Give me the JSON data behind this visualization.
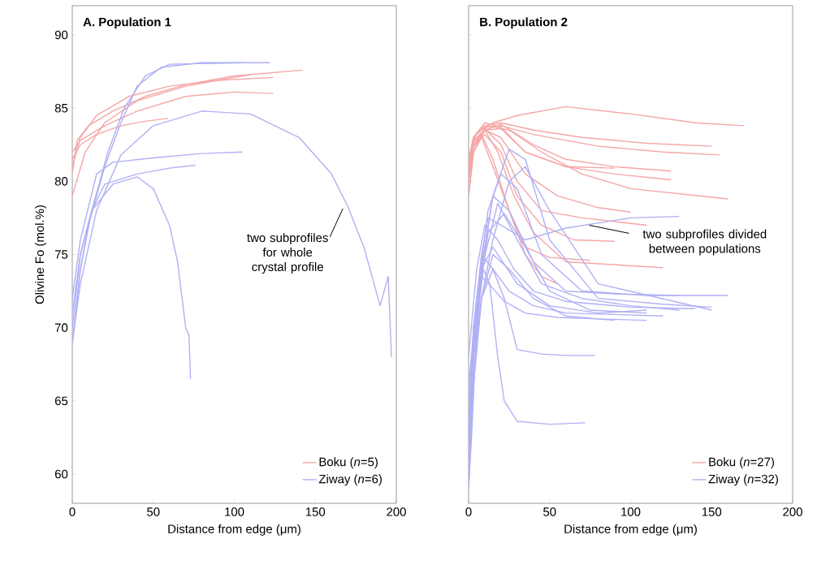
{
  "chart_data": [
    {
      "type": "line",
      "title": "A. Population 1",
      "xlabel": "Distance from edge (μm)",
      "ylabel": "Olivine Fo (mol.%)",
      "xlim": [
        0,
        200
      ],
      "ylim": [
        58,
        92
      ],
      "xticks": [
        0,
        50,
        100,
        150,
        200
      ],
      "yticks": [
        60,
        65,
        70,
        75,
        80,
        85,
        90
      ],
      "legend": "bottom right",
      "annotations": [
        {
          "text": "two subprofiles for whole crystal profile",
          "x": 168,
          "y": 78.3
        }
      ],
      "series": [
        {
          "name": "Boku (*n*=5)",
          "color": "#f5a6a6",
          "x": [
            0,
            3,
            10,
            25,
            45,
            70,
            100,
            142
          ],
          "values": [
            80.5,
            82.8,
            83.8,
            84.8,
            85.8,
            86.6,
            87.2,
            87.6
          ]
        },
        {
          "color": "#f5a6a6",
          "x": [
            0,
            5,
            15,
            35,
            60,
            90,
            124
          ],
          "values": [
            81,
            83,
            84.5,
            85.8,
            86.5,
            86.9,
            87.1
          ]
        },
        {
          "color": "#f5a6a6",
          "x": [
            0,
            5,
            20,
            40,
            70,
            100,
            124
          ],
          "values": [
            82,
            82.8,
            83.8,
            84.8,
            85.8,
            86.1,
            86.0
          ]
        },
        {
          "color": "#f5a6a6",
          "x": [
            0,
            5,
            15,
            30,
            45,
            59
          ],
          "values": [
            81.5,
            82.5,
            83.2,
            83.8,
            84.1,
            84.3
          ]
        },
        {
          "color": "#f5a6a6",
          "x": [
            0,
            8,
            20,
            40,
            70,
            110
          ],
          "values": [
            79,
            82,
            84,
            85.5,
            86.5,
            87.3
          ]
        },
        {
          "name": "Ziway (*n*=6)",
          "color": "#b0b0f5",
          "x": [
            0,
            5,
            10,
            20,
            30,
            40,
            55,
            80,
            122
          ],
          "values": [
            69,
            74,
            77,
            81,
            84,
            86.5,
            87.8,
            88.1,
            88.1
          ]
        },
        {
          "color": "#b0b0f5",
          "x": [
            0,
            5,
            12,
            22,
            32,
            45,
            60,
            105
          ],
          "values": [
            70,
            75,
            78,
            82,
            85,
            87.2,
            88,
            88.1
          ]
        },
        {
          "color": "#b0b0f5",
          "x": [
            0,
            5,
            15,
            30,
            50,
            80,
            110,
            140,
            160,
            170,
            180,
            190,
            195,
            197
          ],
          "values": [
            69,
            73,
            78,
            81.8,
            83.8,
            84.8,
            84.6,
            83,
            80.5,
            78.3,
            75.5,
            71.5,
            73.5,
            68
          ]
        },
        {
          "color": "#b0b0f5",
          "x": [
            0,
            5,
            15,
            25,
            50,
            80,
            105
          ],
          "values": [
            72,
            76,
            80.5,
            81.3,
            81.6,
            81.9,
            82.0
          ]
        },
        {
          "color": "#b0b0f5",
          "x": [
            0,
            5,
            12,
            20,
            40,
            60,
            76
          ],
          "values": [
            71,
            75,
            78,
            79.8,
            80.5,
            80.9,
            81.1
          ]
        },
        {
          "color": "#b0b0f5",
          "x": [
            0,
            5,
            12,
            25,
            40,
            50,
            60,
            65,
            70,
            72,
            73
          ],
          "values": [
            68.8,
            74,
            78,
            79.8,
            80.3,
            79.5,
            77,
            74.5,
            70,
            69.5,
            66.5
          ]
        }
      ]
    },
    {
      "type": "line",
      "title": "B. Population 2",
      "xlabel": "Distance from edge (μm)",
      "xlim": [
        0,
        200
      ],
      "ylim": [
        58,
        92
      ],
      "xticks": [
        0,
        50,
        100,
        150,
        200
      ],
      "yticks": [
        60,
        65,
        70,
        75,
        80,
        85,
        90
      ],
      "legend": "bottom right",
      "tick_labels": "x",
      "annotations": [
        {
          "text": "two subprofiles divided between populations",
          "x": 73,
          "y": 77
        }
      ],
      "series": [
        {
          "name": "Boku (*n*=27)",
          "color": "#f5a6a6",
          "x": [
            0,
            2,
            5,
            15,
            30,
            60,
            100,
            140,
            170
          ],
          "values": [
            80,
            82.5,
            83.3,
            84,
            84.5,
            85.1,
            84.6,
            84,
            83.8
          ]
        },
        {
          "color": "#f5a6a6",
          "x": [
            0,
            3,
            10,
            20,
            40,
            70,
            110,
            150
          ],
          "values": [
            81,
            83,
            83.8,
            84,
            83.5,
            83,
            82.6,
            82.4
          ]
        },
        {
          "color": "#f5a6a6",
          "x": [
            0,
            3,
            10,
            20,
            40,
            80,
            120,
            155
          ],
          "values": [
            81.5,
            83,
            83.7,
            83.8,
            83.2,
            82.4,
            82,
            81.8
          ]
        },
        {
          "color": "#f5a6a6",
          "x": [
            0,
            3,
            10,
            20,
            40,
            60,
            90,
            125
          ],
          "values": [
            80.5,
            82.8,
            83.5,
            83.9,
            82.5,
            81.5,
            81,
            80.7
          ]
        },
        {
          "color": "#f5a6a6",
          "x": [
            0,
            3,
            10,
            20,
            35,
            60,
            90,
            125
          ],
          "values": [
            81,
            82.5,
            83.5,
            83.6,
            82,
            81,
            80.5,
            80.1
          ]
        },
        {
          "color": "#f5a6a6",
          "x": [
            0,
            3,
            12,
            25,
            45,
            70,
            100,
            160
          ],
          "values": [
            81.5,
            82.7,
            83.8,
            83.5,
            82,
            80.5,
            79.5,
            78.8
          ]
        },
        {
          "color": "#f5a6a6",
          "x": [
            0,
            3,
            10,
            20,
            35,
            60,
            90
          ],
          "values": [
            81,
            83,
            84,
            83.7,
            82,
            81,
            80.9
          ]
        },
        {
          "color": "#f5a6a6",
          "x": [
            0,
            3,
            10,
            20,
            35,
            55,
            80,
            100
          ],
          "values": [
            80.5,
            82.5,
            83.5,
            83,
            80.5,
            79,
            78.2,
            77.9
          ]
        },
        {
          "color": "#f5a6a6",
          "x": [
            0,
            3,
            10,
            20,
            30,
            45,
            70,
            110
          ],
          "values": [
            80,
            82.3,
            83.6,
            82.5,
            80,
            78,
            77.5,
            77
          ]
        },
        {
          "color": "#f5a6a6",
          "x": [
            0,
            3,
            10,
            20,
            30,
            45,
            65,
            90
          ],
          "values": [
            81,
            82.5,
            83.2,
            82,
            79,
            77,
            76,
            75.9
          ]
        },
        {
          "color": "#f5a6a6",
          "x": [
            0,
            3,
            10,
            18,
            28,
            40,
            60,
            120
          ],
          "values": [
            80,
            82,
            83.5,
            82,
            79,
            76.5,
            74.5,
            74.1
          ]
        },
        {
          "color": "#f5a6a6",
          "x": [
            0,
            3,
            8,
            15,
            25,
            35,
            50,
            75
          ],
          "values": [
            79,
            82,
            83,
            81,
            78,
            75.5,
            74.8,
            74.6
          ]
        },
        {
          "color": "#f5a6a6",
          "x": [
            0,
            3,
            8,
            15,
            25,
            35,
            45,
            55
          ],
          "values": [
            79,
            82,
            83.2,
            81.5,
            78,
            75,
            73.5,
            73
          ]
        },
        {
          "name": "Ziway (*n*=32)",
          "color": "#b0b0f5",
          "x": [
            0,
            3,
            8,
            12,
            20,
            35,
            60,
            100,
            130
          ],
          "values": [
            62,
            68,
            75,
            77.5,
            77,
            76,
            76.8,
            77.5,
            77.6
          ]
        },
        {
          "color": "#b0b0f5",
          "x": [
            0,
            3,
            8,
            15,
            25,
            40,
            60,
            90,
            130
          ],
          "values": [
            60,
            66,
            74,
            79,
            78,
            74.5,
            72.5,
            72.3,
            72.2
          ]
        },
        {
          "color": "#b0b0f5",
          "x": [
            0,
            5,
            12,
            20,
            30,
            45,
            70,
            110,
            160
          ],
          "values": [
            66,
            72,
            78,
            80.5,
            79.5,
            75,
            72.5,
            72.2,
            72.2
          ]
        },
        {
          "color": "#b0b0f5",
          "x": [
            0,
            5,
            15,
            25,
            35,
            50,
            80,
            120,
            150
          ],
          "values": [
            65,
            72,
            79,
            82.2,
            81.5,
            76,
            72,
            71.6,
            71.4
          ]
        },
        {
          "color": "#b0b0f5",
          "x": [
            0,
            5,
            10,
            18,
            28,
            40,
            60,
            100,
            140
          ],
          "values": [
            68,
            74,
            77,
            76,
            74,
            72.5,
            71.8,
            71.4,
            71.3
          ]
        },
        {
          "color": "#b0b0f5",
          "x": [
            0,
            5,
            12,
            22,
            35,
            50,
            75,
            110
          ],
          "values": [
            64,
            71,
            76.5,
            77.8,
            75.5,
            72.5,
            71.2,
            71
          ]
        },
        {
          "color": "#b0b0f5",
          "x": [
            0,
            3,
            8,
            15,
            25,
            40,
            60,
            90,
            120
          ],
          "values": [
            61,
            70,
            75,
            74,
            72.5,
            71.5,
            71,
            70.9,
            70.8
          ]
        },
        {
          "color": "#b0b0f5",
          "x": [
            0,
            3,
            8,
            14,
            22,
            35,
            55,
            80,
            110
          ],
          "values": [
            63,
            70,
            73.5,
            72.8,
            71.8,
            71,
            70.7,
            70.6,
            70.5
          ]
        },
        {
          "color": "#b0b0f5",
          "x": [
            0,
            3,
            8,
            15,
            30,
            50,
            80,
            110
          ],
          "values": [
            62,
            69,
            74,
            75.5,
            73,
            71.5,
            71,
            71.2
          ]
        },
        {
          "color": "#b0b0f5",
          "x": [
            0,
            3,
            8,
            15,
            25,
            40,
            60,
            90
          ],
          "values": [
            59,
            66,
            72,
            75,
            74,
            72,
            70.8,
            70.5
          ]
        },
        {
          "color": "#b0b0f5",
          "x": [
            0,
            3,
            8,
            15,
            22,
            30,
            45,
            60,
            78
          ],
          "values": [
            61,
            67,
            72,
            74,
            72,
            68.5,
            68.2,
            68.1,
            68.1
          ]
        },
        {
          "color": "#b0b0f5",
          "x": [
            0,
            2,
            5,
            9,
            13,
            18,
            22,
            30,
            50,
            72
          ],
          "values": [
            59,
            63,
            70,
            74,
            73,
            68,
            65,
            63.6,
            63.4,
            63.5
          ]
        },
        {
          "color": "#b0b0f5",
          "x": [
            0,
            3,
            8,
            15,
            25,
            35,
            50,
            80,
            150
          ],
          "values": [
            62,
            68,
            72,
            76,
            80,
            81,
            78,
            73,
            71.2
          ]
        },
        {
          "color": "#b0b0f5",
          "x": [
            0,
            3,
            8,
            18,
            30,
            45,
            70,
            100,
            130
          ],
          "values": [
            60,
            68,
            74,
            78.5,
            76,
            73,
            72,
            71.5,
            71.2
          ]
        }
      ]
    }
  ]
}
